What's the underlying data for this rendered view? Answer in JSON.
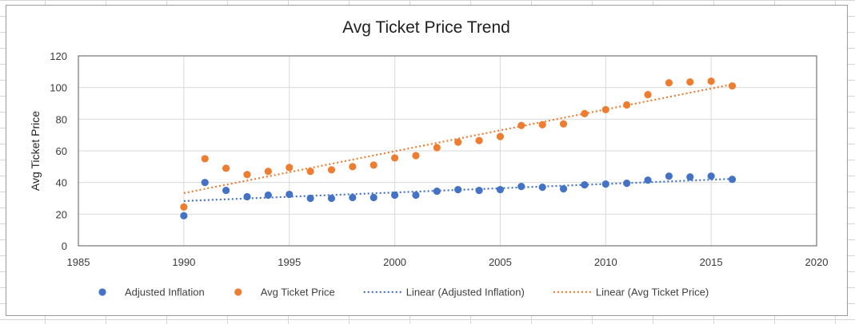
{
  "chart_data": {
    "type": "scatter",
    "title": "Avg Ticket Price Trend",
    "xlabel": "",
    "ylabel": "Avg Ticket Price",
    "xlim": [
      1985,
      2020
    ],
    "ylim": [
      0,
      120
    ],
    "xticks": [
      1985,
      1990,
      1995,
      2000,
      2005,
      2010,
      2015,
      2020
    ],
    "yticks": [
      0,
      20,
      40,
      60,
      80,
      100,
      120
    ],
    "grid": true,
    "legend_position": "bottom",
    "series": [
      {
        "name": "Adjusted Inflation",
        "color": "#4472c4",
        "x": [
          1990,
          1991,
          1992,
          1993,
          1994,
          1995,
          1996,
          1997,
          1998,
          1999,
          2000,
          2001,
          2002,
          2003,
          2004,
          2005,
          2006,
          2007,
          2008,
          2009,
          2010,
          2011,
          2012,
          2013,
          2014,
          2015,
          2016
        ],
        "y": [
          19,
          40,
          35,
          31,
          32,
          32.5,
          30,
          30,
          30.5,
          30.5,
          32,
          32,
          34.5,
          35.5,
          35,
          35.5,
          37.5,
          37,
          36,
          38.5,
          39,
          39.5,
          41.5,
          44,
          43.5,
          44,
          42
        ]
      },
      {
        "name": "Avg Ticket Price",
        "color": "#ed7d31",
        "x": [
          1990,
          1991,
          1992,
          1993,
          1994,
          1995,
          1996,
          1997,
          1998,
          1999,
          2000,
          2001,
          2002,
          2003,
          2004,
          2005,
          2006,
          2007,
          2008,
          2009,
          2010,
          2011,
          2012,
          2013,
          2014,
          2015,
          2016
        ],
        "y": [
          24.5,
          55,
          49,
          45,
          47,
          49.5,
          47,
          48,
          50,
          51,
          55.5,
          57,
          62,
          65.5,
          66.5,
          69,
          76,
          76.5,
          77,
          83.5,
          86,
          89,
          95.5,
          103,
          103.5,
          104,
          101
        ]
      }
    ],
    "trendlines": [
      {
        "name": "Linear (Adjusted Inflation)",
        "color": "#4472c4",
        "style": "dotted",
        "x": [
          1990,
          2016
        ],
        "y": [
          28.3,
          42.3
        ]
      },
      {
        "name": "Linear (Avg Ticket Price)",
        "color": "#ed7d31",
        "style": "dotted",
        "x": [
          1990,
          2016
        ],
        "y": [
          33.3,
          102
        ]
      }
    ],
    "legend": [
      {
        "label": "Adjusted Inflation",
        "kind": "marker",
        "color": "#4472c4"
      },
      {
        "label": "Avg Ticket Price",
        "kind": "marker",
        "color": "#ed7d31"
      },
      {
        "label": "Linear (Adjusted Inflation)",
        "kind": "dotted-line",
        "color": "#4472c4"
      },
      {
        "label": "Linear (Avg Ticket Price)",
        "kind": "dotted-line",
        "color": "#ed7d31"
      }
    ]
  }
}
